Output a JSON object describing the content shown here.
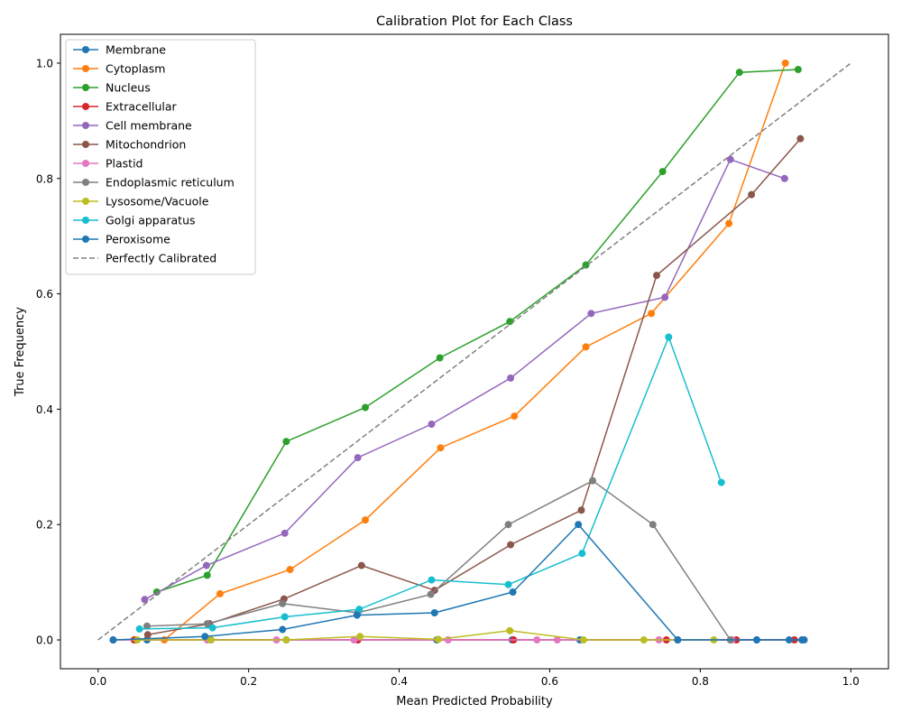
{
  "chart_data": {
    "type": "line",
    "title": "Calibration Plot for Each Class",
    "xlabel": "Mean Predicted Probability",
    "ylabel": "True Frequency",
    "xlim": [
      -0.05,
      1.05
    ],
    "ylim": [
      -0.05,
      1.05
    ],
    "xticks": [
      0.0,
      0.2,
      0.4,
      0.6,
      0.8,
      1.0
    ],
    "yticks": [
      0.0,
      0.2,
      0.4,
      0.6,
      0.8,
      1.0
    ],
    "xtick_labels": [
      "0.0",
      "0.2",
      "0.4",
      "0.6",
      "0.8",
      "1.0"
    ],
    "ytick_labels": [
      "0.0",
      "0.2",
      "0.4",
      "0.6",
      "0.8",
      "1.0"
    ],
    "grid": false,
    "legend_position": "top-left",
    "series": [
      {
        "name": "Membrane",
        "color": "#1f77b4",
        "x": [
          0.02,
          0.065,
          0.15,
          0.25,
          0.345,
          0.45,
          0.55,
          0.64,
          0.77,
          0.875,
          0.935
        ],
        "y": [
          0.0,
          0.0,
          0.0,
          0.0,
          0.0,
          0.0,
          0.0,
          0.0,
          0.0,
          0.0,
          0.0
        ]
      },
      {
        "name": "Cytoplasm",
        "color": "#ff7f0e",
        "x": [
          0.05,
          0.088,
          0.162,
          0.255,
          0.355,
          0.455,
          0.553,
          0.648,
          0.735,
          0.838,
          0.913
        ],
        "y": [
          0.0,
          0.0,
          0.08,
          0.122,
          0.208,
          0.333,
          0.388,
          0.508,
          0.566,
          0.722,
          1.0
        ]
      },
      {
        "name": "Nucleus",
        "color": "#2ca02c",
        "x": [
          0.078,
          0.145,
          0.25,
          0.355,
          0.454,
          0.547,
          0.648,
          0.75,
          0.852,
          0.93
        ],
        "y": [
          0.083,
          0.112,
          0.344,
          0.403,
          0.489,
          0.552,
          0.65,
          0.812,
          0.984,
          0.989
        ]
      },
      {
        "name": "Extracellular",
        "color": "#d62728",
        "x": [
          0.048,
          0.345,
          0.552,
          0.755,
          0.848,
          0.925
        ],
        "y": [
          0.0,
          0.0,
          0.0,
          0.0,
          0.0,
          0.0
        ]
      },
      {
        "name": "Cell membrane",
        "color": "#9467bd",
        "x": [
          0.062,
          0.144,
          0.248,
          0.345,
          0.443,
          0.548,
          0.655,
          0.753,
          0.84,
          0.912
        ],
        "y": [
          0.07,
          0.129,
          0.185,
          0.316,
          0.374,
          0.454,
          0.566,
          0.594,
          0.833,
          0.8
        ]
      },
      {
        "name": "Mitochondrion",
        "color": "#8c564b",
        "x": [
          0.066,
          0.148,
          0.247,
          0.35,
          0.447,
          0.548,
          0.642,
          0.742,
          0.868,
          0.933
        ],
        "y": [
          0.009,
          0.028,
          0.071,
          0.129,
          0.086,
          0.165,
          0.225,
          0.632,
          0.772,
          0.869
        ]
      },
      {
        "name": "Plastid",
        "color": "#e377c2",
        "x": [
          0.02,
          0.145,
          0.237,
          0.34,
          0.465,
          0.583,
          0.61,
          0.745,
          0.842
        ],
        "y": [
          0.0,
          0.0,
          0.0,
          0.0,
          0.0,
          0.0,
          0.0,
          0.0,
          0.0
        ]
      },
      {
        "name": "Endoplasmic reticulum",
        "color": "#7f7f7f",
        "x": [
          0.065,
          0.145,
          0.245,
          0.345,
          0.442,
          0.545,
          0.657,
          0.737,
          0.84
        ],
        "y": [
          0.024,
          0.028,
          0.063,
          0.047,
          0.079,
          0.2,
          0.276,
          0.2,
          0.0
        ]
      },
      {
        "name": "Lysosome/Vacuole",
        "color": "#bcbd22",
        "x": [
          0.052,
          0.15,
          0.25,
          0.348,
          0.452,
          0.547,
          0.645,
          0.725,
          0.818
        ],
        "y": [
          0.0,
          0.0,
          0.0,
          0.006,
          0.001,
          0.016,
          0.0,
          0.0,
          0.0
        ]
      },
      {
        "name": "Golgi apparatus",
        "color": "#17becf",
        "x": [
          0.055,
          0.152,
          0.248,
          0.347,
          0.443,
          0.545,
          0.643,
          0.758,
          0.828
        ],
        "y": [
          0.019,
          0.021,
          0.04,
          0.053,
          0.104,
          0.096,
          0.15,
          0.525,
          0.273
        ]
      },
      {
        "name": "Peroxisome",
        "color": "#1f77b4",
        "x": [
          0.02,
          0.142,
          0.245,
          0.344,
          0.447,
          0.551,
          0.638,
          0.77,
          0.875,
          0.918,
          0.938
        ],
        "y": [
          0.0,
          0.006,
          0.018,
          0.043,
          0.047,
          0.083,
          0.2,
          0.0,
          0.0,
          0.0,
          0.0
        ]
      }
    ],
    "reference_line": {
      "name": "Perfectly Calibrated",
      "color": "#808080",
      "x": [
        0,
        1
      ],
      "y": [
        0,
        1
      ]
    }
  }
}
